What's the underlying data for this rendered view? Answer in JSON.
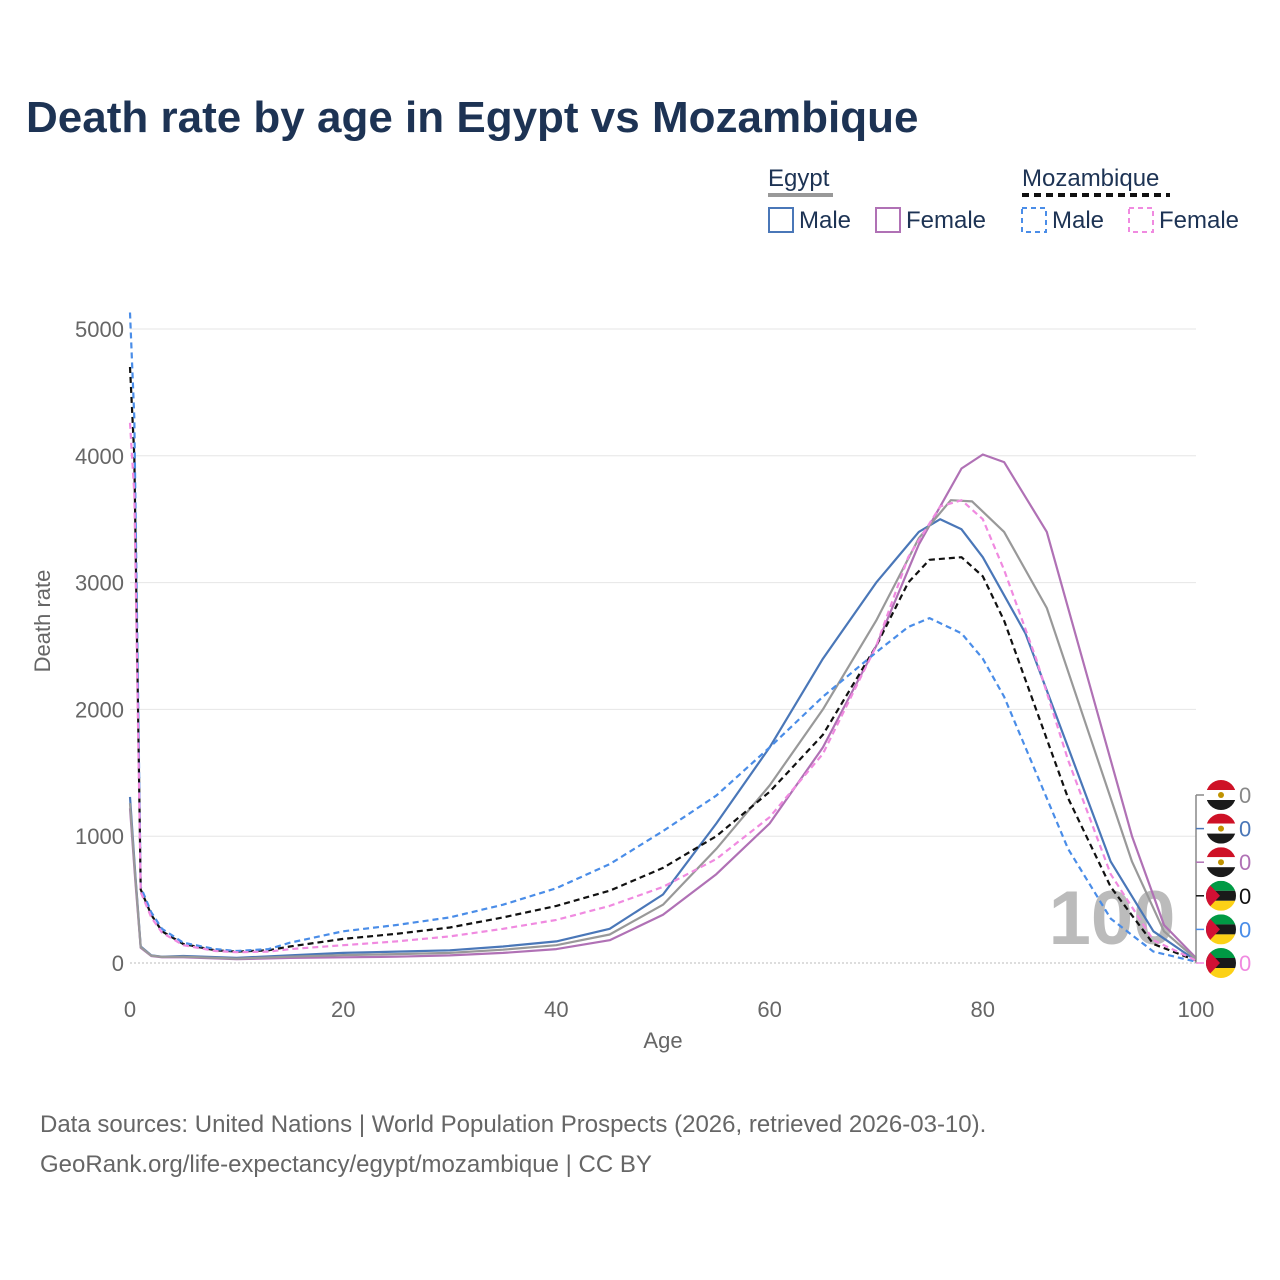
{
  "title": "Death rate by age in Egypt vs Mozambique",
  "legend": {
    "groups": [
      {
        "label": "Egypt",
        "line_color": "#999999",
        "dashed": false
      },
      {
        "label": "Mozambique",
        "line_color": "#111111",
        "dashed": true
      }
    ],
    "items": [
      {
        "label": "Male",
        "color": "#4a77b8",
        "dashed": false
      },
      {
        "label": "Female",
        "color": "#b071b5",
        "dashed": false
      },
      {
        "label": "Male",
        "color": "#4a8de8",
        "dashed": true
      },
      {
        "label": "Female",
        "color": "#f08ae0",
        "dashed": true
      }
    ]
  },
  "overlay_label": "100",
  "source_lines": [
    "Data sources: United Nations | World Population Prospects (2026, retrieved 2026-03-10).",
    "GeoRank.org/life-expectancy/egypt/mozambique | CC BY"
  ],
  "chart_data": {
    "type": "line",
    "title": "Death rate by age in Egypt vs Mozambique",
    "xlabel": "Age",
    "ylabel": "Death rate",
    "xlim": [
      0,
      100
    ],
    "ylim": [
      0,
      5000
    ],
    "x_ticks": [
      0,
      20,
      40,
      60,
      80,
      100
    ],
    "y_ticks": [
      0,
      1000,
      2000,
      3000,
      4000,
      5000
    ],
    "grid": true,
    "series": [
      {
        "name": "Egypt Male",
        "color": "#4a77b8",
        "dashed": false,
        "points": [
          [
            0,
            1310
          ],
          [
            0.5,
            700
          ],
          [
            1,
            130
          ],
          [
            2,
            60
          ],
          [
            3,
            50
          ],
          [
            5,
            55
          ],
          [
            10,
            40
          ],
          [
            15,
            60
          ],
          [
            20,
            80
          ],
          [
            25,
            90
          ],
          [
            30,
            100
          ],
          [
            35,
            130
          ],
          [
            40,
            170
          ],
          [
            45,
            270
          ],
          [
            50,
            540
          ],
          [
            55,
            1100
          ],
          [
            60,
            1700
          ],
          [
            65,
            2400
          ],
          [
            70,
            3000
          ],
          [
            74,
            3400
          ],
          [
            76,
            3500
          ],
          [
            78,
            3420
          ],
          [
            80,
            3200
          ],
          [
            84,
            2600
          ],
          [
            88,
            1700
          ],
          [
            92,
            800
          ],
          [
            96,
            250
          ],
          [
            100,
            20
          ]
        ]
      },
      {
        "name": "Egypt Female",
        "color": "#b071b5",
        "dashed": false,
        "points": [
          [
            0,
            1220
          ],
          [
            0.5,
            650
          ],
          [
            1,
            120
          ],
          [
            2,
            55
          ],
          [
            3,
            45
          ],
          [
            5,
            45
          ],
          [
            10,
            30
          ],
          [
            15,
            40
          ],
          [
            20,
            45
          ],
          [
            25,
            50
          ],
          [
            30,
            60
          ],
          [
            35,
            80
          ],
          [
            40,
            110
          ],
          [
            45,
            180
          ],
          [
            50,
            380
          ],
          [
            55,
            700
          ],
          [
            60,
            1100
          ],
          [
            65,
            1700
          ],
          [
            70,
            2500
          ],
          [
            74,
            3300
          ],
          [
            78,
            3900
          ],
          [
            80,
            4010
          ],
          [
            82,
            3950
          ],
          [
            86,
            3400
          ],
          [
            90,
            2200
          ],
          [
            94,
            1000
          ],
          [
            97,
            300
          ],
          [
            100,
            40
          ]
        ]
      },
      {
        "name": "Egypt Total",
        "color": "#999999",
        "dashed": false,
        "points": [
          [
            0,
            1260
          ],
          [
            0.5,
            680
          ],
          [
            1,
            125
          ],
          [
            2,
            58
          ],
          [
            3,
            48
          ],
          [
            5,
            50
          ],
          [
            10,
            35
          ],
          [
            15,
            50
          ],
          [
            20,
            62
          ],
          [
            25,
            70
          ],
          [
            30,
            80
          ],
          [
            35,
            105
          ],
          [
            40,
            140
          ],
          [
            45,
            225
          ],
          [
            50,
            460
          ],
          [
            55,
            900
          ],
          [
            60,
            1400
          ],
          [
            65,
            2000
          ],
          [
            70,
            2700
          ],
          [
            74,
            3350
          ],
          [
            77,
            3650
          ],
          [
            79,
            3640
          ],
          [
            82,
            3400
          ],
          [
            86,
            2800
          ],
          [
            90,
            1800
          ],
          [
            94,
            800
          ],
          [
            97,
            250
          ],
          [
            100,
            30
          ]
        ]
      },
      {
        "name": "Mozambique Total",
        "color": "#111111",
        "dashed": true,
        "points": [
          [
            0,
            4700
          ],
          [
            0.4,
            4000
          ],
          [
            1,
            580
          ],
          [
            2,
            380
          ],
          [
            3,
            250
          ],
          [
            5,
            150
          ],
          [
            8,
            100
          ],
          [
            10,
            90
          ],
          [
            13,
            100
          ],
          [
            15,
            130
          ],
          [
            20,
            190
          ],
          [
            25,
            230
          ],
          [
            30,
            280
          ],
          [
            35,
            360
          ],
          [
            40,
            450
          ],
          [
            45,
            570
          ],
          [
            50,
            750
          ],
          [
            55,
            1000
          ],
          [
            60,
            1350
          ],
          [
            65,
            1800
          ],
          [
            70,
            2500
          ],
          [
            73,
            3000
          ],
          [
            75,
            3180
          ],
          [
            78,
            3200
          ],
          [
            80,
            3050
          ],
          [
            82,
            2700
          ],
          [
            85,
            2000
          ],
          [
            88,
            1300
          ],
          [
            92,
            600
          ],
          [
            96,
            150
          ],
          [
            100,
            20
          ]
        ]
      },
      {
        "name": "Mozambique Male",
        "color": "#4a8de8",
        "dashed": true,
        "points": [
          [
            0,
            5130
          ],
          [
            0.4,
            4300
          ],
          [
            1,
            600
          ],
          [
            2,
            400
          ],
          [
            3,
            270
          ],
          [
            5,
            160
          ],
          [
            8,
            110
          ],
          [
            10,
            95
          ],
          [
            13,
            110
          ],
          [
            15,
            160
          ],
          [
            20,
            250
          ],
          [
            25,
            300
          ],
          [
            30,
            360
          ],
          [
            35,
            460
          ],
          [
            40,
            590
          ],
          [
            45,
            780
          ],
          [
            50,
            1040
          ],
          [
            55,
            1320
          ],
          [
            60,
            1700
          ],
          [
            65,
            2100
          ],
          [
            70,
            2450
          ],
          [
            73,
            2650
          ],
          [
            75,
            2720
          ],
          [
            78,
            2600
          ],
          [
            80,
            2400
          ],
          [
            82,
            2100
          ],
          [
            85,
            1500
          ],
          [
            88,
            900
          ],
          [
            92,
            350
          ],
          [
            96,
            90
          ],
          [
            100,
            10
          ]
        ]
      },
      {
        "name": "Mozambique Female",
        "color": "#f08ae0",
        "dashed": true,
        "points": [
          [
            0,
            4260
          ],
          [
            0.4,
            3700
          ],
          [
            1,
            560
          ],
          [
            2,
            360
          ],
          [
            3,
            240
          ],
          [
            5,
            140
          ],
          [
            8,
            95
          ],
          [
            10,
            85
          ],
          [
            13,
            90
          ],
          [
            15,
            110
          ],
          [
            20,
            140
          ],
          [
            25,
            170
          ],
          [
            30,
            210
          ],
          [
            35,
            270
          ],
          [
            40,
            340
          ],
          [
            45,
            450
          ],
          [
            50,
            600
          ],
          [
            55,
            820
          ],
          [
            60,
            1150
          ],
          [
            65,
            1650
          ],
          [
            70,
            2500
          ],
          [
            73,
            3200
          ],
          [
            76,
            3600
          ],
          [
            78,
            3650
          ],
          [
            80,
            3500
          ],
          [
            82,
            3100
          ],
          [
            85,
            2400
          ],
          [
            88,
            1600
          ],
          [
            92,
            700
          ],
          [
            96,
            180
          ],
          [
            100,
            20
          ]
        ]
      }
    ],
    "end_values": [
      {
        "label": "0",
        "color": "#888888",
        "country": "Egypt"
      },
      {
        "label": "0",
        "color": "#4a77b8",
        "country": "Egypt"
      },
      {
        "label": "0",
        "color": "#b071b5",
        "country": "Egypt"
      },
      {
        "label": "0",
        "color": "#111111",
        "country": "Mozambique"
      },
      {
        "label": "0",
        "color": "#4a8de8",
        "country": "Mozambique"
      },
      {
        "label": "0",
        "color": "#f08ae0",
        "country": "Mozambique"
      }
    ]
  }
}
